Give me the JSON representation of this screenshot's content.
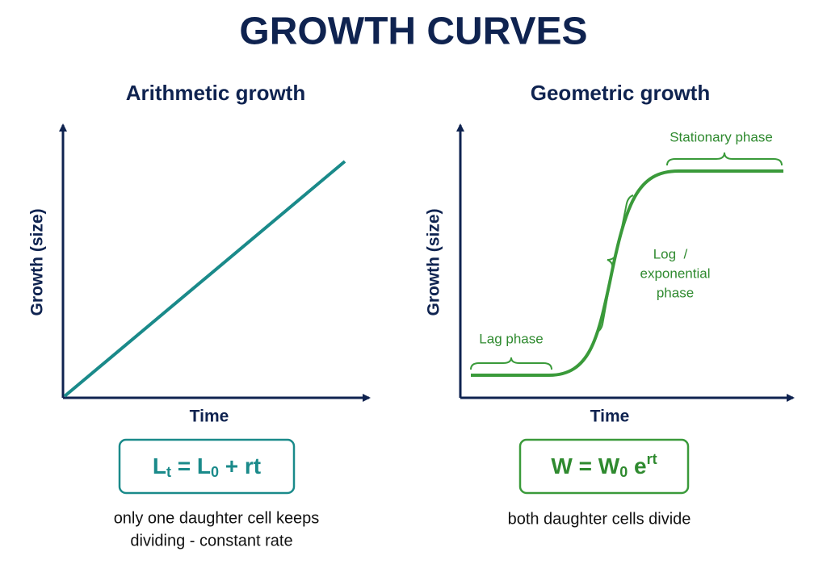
{
  "title": "GROWTH CURVES",
  "panels": [
    {
      "title": "Arithmetic growth",
      "y_label": "Growth (size)",
      "x_label": "Time",
      "formula": [
        "L",
        "t",
        " = L",
        "0",
        " + rt"
      ],
      "caption": [
        "only one daughter cell keeps",
        "dividing - constant rate"
      ]
    },
    {
      "title": "Geometric growth",
      "y_label": "Growth (size)",
      "x_label": "Time",
      "annotations": {
        "stationary": "Stationary phase",
        "log": [
          "Log  /",
          "exponential",
          "phase"
        ],
        "lag": "Lag phase"
      },
      "formula": [
        "W = W",
        "0",
        " e",
        "rt"
      ],
      "caption": [
        "both daughter cells divide"
      ]
    }
  ]
}
